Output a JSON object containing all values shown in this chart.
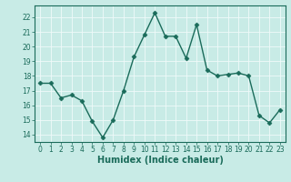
{
  "x": [
    0,
    1,
    2,
    3,
    4,
    5,
    6,
    7,
    8,
    9,
    10,
    11,
    12,
    13,
    14,
    15,
    16,
    17,
    18,
    19,
    20,
    21,
    22,
    23
  ],
  "y": [
    17.5,
    17.5,
    16.5,
    16.7,
    16.3,
    14.9,
    13.8,
    15.0,
    17.0,
    19.3,
    20.8,
    22.3,
    20.7,
    20.7,
    19.2,
    21.5,
    18.4,
    18.0,
    18.1,
    18.2,
    18.0,
    15.3,
    14.8,
    15.7
  ],
  "line_color": "#1a6b5a",
  "marker": "D",
  "marker_size": 2.5,
  "background_color": "#c8ebe6",
  "grid_color": "#f0fafa",
  "xlabel": "Humidex (Indice chaleur)",
  "ylim": [
    13.5,
    22.8
  ],
  "xlim": [
    -0.5,
    23.5
  ],
  "yticks": [
    14,
    15,
    16,
    17,
    18,
    19,
    20,
    21,
    22
  ],
  "xticks": [
    0,
    1,
    2,
    3,
    4,
    5,
    6,
    7,
    8,
    9,
    10,
    11,
    12,
    13,
    14,
    15,
    16,
    17,
    18,
    19,
    20,
    21,
    22,
    23
  ],
  "tick_fontsize": 5.5,
  "xlabel_fontsize": 7,
  "tick_color": "#1a6b5a",
  "axis_color": "#1a6b5a",
  "linewidth": 1.0,
  "grid_linewidth": 0.6
}
